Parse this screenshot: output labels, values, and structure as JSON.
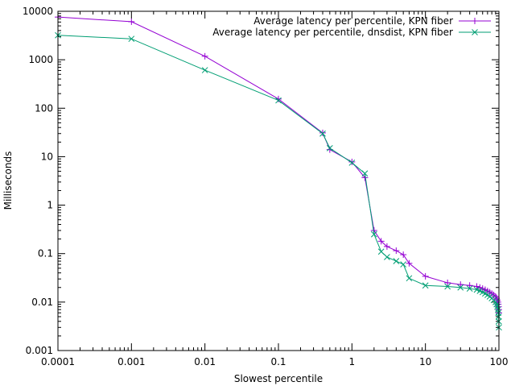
{
  "chart_data": {
    "type": "line",
    "xlabel": "Slowest percentile",
    "ylabel": "Milliseconds",
    "x_scale": "log",
    "y_scale": "log",
    "xlim": [
      0.0001,
      100
    ],
    "ylim": [
      0.001,
      10000
    ],
    "x_ticks": [
      {
        "v": 0.0001,
        "label": "0.0001"
      },
      {
        "v": 0.001,
        "label": "0.001"
      },
      {
        "v": 0.01,
        "label": "0.01"
      },
      {
        "v": 0.1,
        "label": "0.1"
      },
      {
        "v": 1,
        "label": "1"
      },
      {
        "v": 10,
        "label": "10"
      },
      {
        "v": 100,
        "label": "100"
      }
    ],
    "y_ticks": [
      {
        "v": 0.001,
        "label": "0.001"
      },
      {
        "v": 0.01,
        "label": "0.01"
      },
      {
        "v": 0.1,
        "label": "0.1"
      },
      {
        "v": 1,
        "label": "1"
      },
      {
        "v": 10,
        "label": "10"
      },
      {
        "v": 100,
        "label": "100"
      },
      {
        "v": 1000,
        "label": "1000"
      },
      {
        "v": 10000,
        "label": "10000"
      }
    ],
    "grid": false,
    "legend_position": "top-right",
    "series": [
      {
        "name": "Average latency per percentile, KPN fiber",
        "color": "#9400d3",
        "marker": "plus",
        "points": [
          [
            0.0001,
            7600
          ],
          [
            0.001,
            6100
          ],
          [
            0.01,
            1180
          ],
          [
            0.1,
            155
          ],
          [
            0.4,
            31
          ],
          [
            0.5,
            14
          ],
          [
            1,
            7.8
          ],
          [
            1.5,
            3.7
          ],
          [
            2,
            0.3
          ],
          [
            2.5,
            0.18
          ],
          [
            3,
            0.14
          ],
          [
            4,
            0.115
          ],
          [
            5,
            0.095
          ],
          [
            6,
            0.063
          ],
          [
            10,
            0.034
          ],
          [
            20,
            0.025
          ],
          [
            30,
            0.023
          ],
          [
            40,
            0.022
          ],
          [
            50,
            0.021
          ],
          [
            55,
            0.02
          ],
          [
            60,
            0.019
          ],
          [
            65,
            0.018
          ],
          [
            70,
            0.017
          ],
          [
            75,
            0.016
          ],
          [
            80,
            0.015
          ],
          [
            85,
            0.014
          ],
          [
            90,
            0.013
          ],
          [
            93,
            0.012
          ],
          [
            95,
            0.011
          ],
          [
            97,
            0.01
          ],
          [
            98,
            0.009
          ],
          [
            99,
            0.008
          ],
          [
            99.5,
            0.007
          ],
          [
            100,
            0.006
          ]
        ]
      },
      {
        "name": "Average latency per percentile, dnsdist, KPN fiber",
        "color": "#009e73",
        "marker": "cross",
        "points": [
          [
            0.0001,
            3200
          ],
          [
            0.001,
            2700
          ],
          [
            0.01,
            610
          ],
          [
            0.1,
            145
          ],
          [
            0.4,
            30
          ],
          [
            0.5,
            15
          ],
          [
            1,
            7.5
          ],
          [
            1.5,
            4.5
          ],
          [
            2,
            0.25
          ],
          [
            2.5,
            0.11
          ],
          [
            3,
            0.085
          ],
          [
            4,
            0.07
          ],
          [
            5,
            0.06
          ],
          [
            6,
            0.031
          ],
          [
            10,
            0.022
          ],
          [
            20,
            0.021
          ],
          [
            30,
            0.02
          ],
          [
            40,
            0.019
          ],
          [
            50,
            0.018
          ],
          [
            55,
            0.017
          ],
          [
            60,
            0.016
          ],
          [
            65,
            0.015
          ],
          [
            70,
            0.014
          ],
          [
            75,
            0.013
          ],
          [
            80,
            0.012
          ],
          [
            85,
            0.011
          ],
          [
            90,
            0.01
          ],
          [
            93,
            0.009
          ],
          [
            95,
            0.008
          ],
          [
            97,
            0.007
          ],
          [
            98,
            0.006
          ],
          [
            99,
            0.005
          ],
          [
            99.5,
            0.004
          ],
          [
            100,
            0.003
          ]
        ]
      }
    ]
  }
}
